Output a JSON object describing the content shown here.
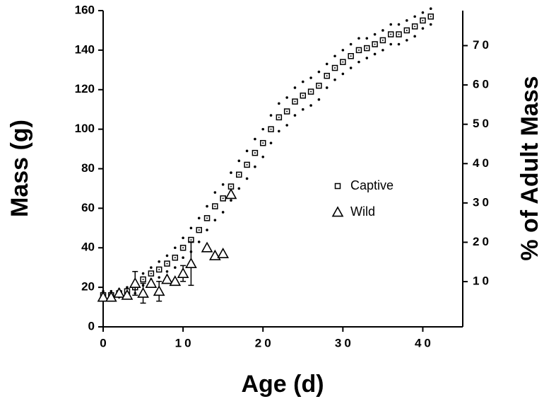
{
  "chart_data": {
    "type": "scatter",
    "x_label": "Age (d)",
    "y_label": "Mass (g)",
    "y2_label": "% of Adult Mass",
    "xlim": [
      0,
      45
    ],
    "xticks": [
      0,
      10,
      20,
      30,
      40
    ],
    "ylim": [
      0,
      160
    ],
    "yticks": [
      0,
      20,
      40,
      60,
      80,
      100,
      120,
      140,
      160
    ],
    "y2lim": [
      -1.5,
      78.9
    ],
    "y2ticks": [
      10,
      20,
      30,
      40,
      50,
      60,
      70
    ],
    "series": [
      {
        "name": "Captive",
        "marker": "square",
        "color": "#000000",
        "x": [
          0,
          1,
          2,
          3,
          4,
          5,
          6,
          7,
          8,
          9,
          10,
          11,
          12,
          13,
          14,
          15,
          16,
          17,
          18,
          19,
          20,
          21,
          22,
          23,
          24,
          25,
          26,
          27,
          28,
          29,
          30,
          31,
          32,
          33,
          34,
          35,
          36,
          37,
          38,
          39,
          40,
          41
        ],
        "values": [
          16,
          16,
          17,
          18,
          20,
          24,
          27,
          29,
          32,
          35,
          40,
          44,
          49,
          55,
          61,
          65,
          71,
          77,
          82,
          88,
          93,
          100,
          106,
          109,
          114,
          117,
          119,
          122,
          127,
          131,
          134,
          137,
          140,
          141,
          143,
          145,
          148,
          148,
          150,
          152,
          155,
          157
        ],
        "errors": [
          2,
          2,
          2,
          2,
          3,
          3,
          3,
          4,
          4,
          5,
          5,
          6,
          6,
          6,
          7,
          7,
          7,
          7,
          7,
          7,
          7,
          7,
          7,
          7,
          7,
          7,
          7,
          7,
          6,
          6,
          6,
          6,
          6,
          5,
          5,
          5,
          5,
          5,
          5,
          5,
          4,
          4
        ]
      },
      {
        "name": "Wild",
        "marker": "triangle",
        "color": "#000000",
        "x": [
          0,
          1,
          2,
          3,
          4,
          5,
          6,
          7,
          8,
          9,
          10,
          11,
          13,
          14,
          15,
          16
        ],
        "values": [
          15,
          15,
          17,
          16,
          22,
          17,
          22,
          18,
          24,
          23,
          27,
          32,
          40,
          36,
          37,
          67
        ],
        "errors": [
          null,
          null,
          null,
          null,
          6,
          5,
          null,
          5,
          null,
          null,
          4,
          11,
          null,
          null,
          null,
          null
        ]
      }
    ]
  }
}
